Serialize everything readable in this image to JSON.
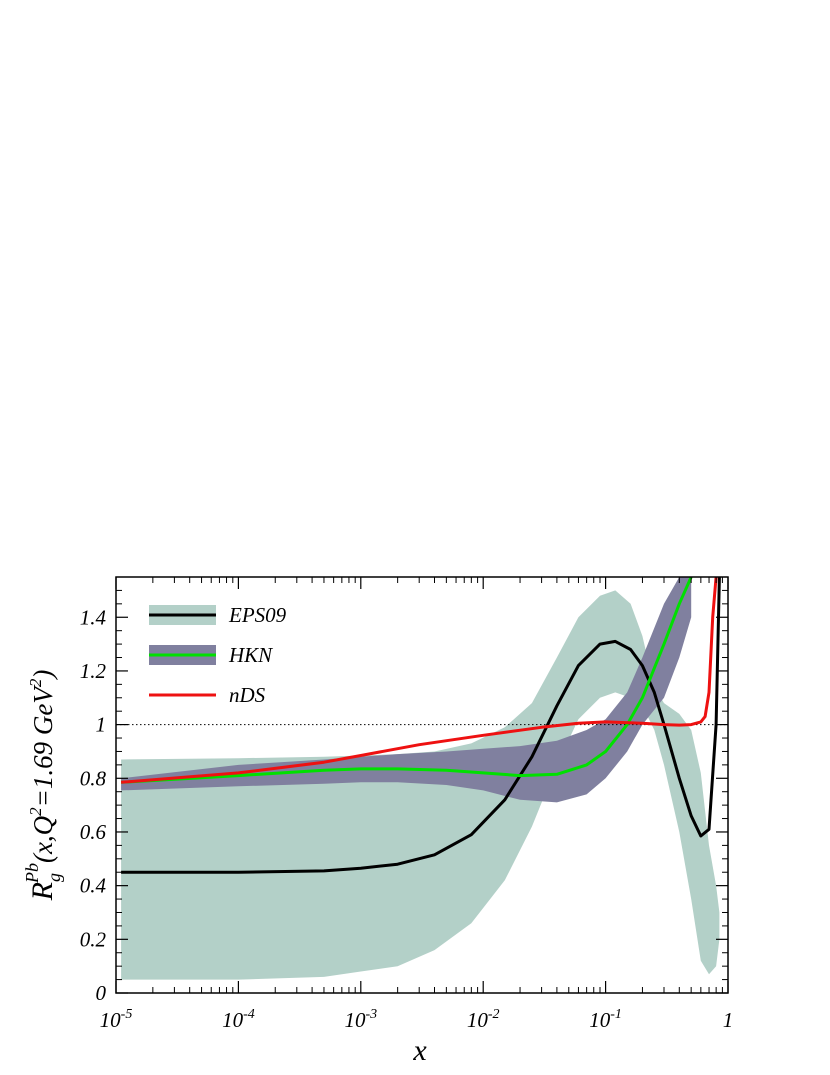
{
  "chart_data": {
    "type": "line",
    "title": "",
    "xlabel": "x",
    "ylabel": {
      "main": "R",
      "sub": "g",
      "sup": "Pb",
      "rest": "(x,Q",
      "q2sup": "2",
      "mid": "=1.69 GeV",
      "gevsup": "2",
      "close": ")"
    },
    "xscale": "log",
    "xlim": [
      1e-05,
      1.0
    ],
    "ylim": [
      0,
      1.55
    ],
    "xticks": [
      {
        "value": 1e-05,
        "base": "10",
        "exp": "-5"
      },
      {
        "value": 0.0001,
        "base": "10",
        "exp": "-4"
      },
      {
        "value": 0.001,
        "base": "10",
        "exp": "-3"
      },
      {
        "value": 0.01,
        "base": "10",
        "exp": "-2"
      },
      {
        "value": 0.1,
        "base": "10",
        "exp": "-1"
      },
      {
        "value": 1,
        "base": "1",
        "exp": ""
      }
    ],
    "yticks": [
      {
        "value": 0,
        "label": "0"
      },
      {
        "value": 0.2,
        "label": "0.2"
      },
      {
        "value": 0.4,
        "label": "0.4"
      },
      {
        "value": 0.6,
        "label": "0.6"
      },
      {
        "value": 0.8,
        "label": "0.8"
      },
      {
        "value": 1.0,
        "label": "1"
      },
      {
        "value": 1.2,
        "label": "1.2"
      },
      {
        "value": 1.4,
        "label": "1.4"
      }
    ],
    "reference_line": {
      "y": 1.0,
      "style": "dotted"
    },
    "legend_position": "top-left",
    "series": [
      {
        "name": "EPS09",
        "color": "#000000",
        "band_color": "#b3d0c8",
        "x": [
          1.1e-05,
          0.0001,
          0.0005,
          0.001,
          0.002,
          0.004,
          0.008,
          0.015,
          0.025,
          0.04,
          0.06,
          0.09,
          0.12,
          0.16,
          0.2,
          0.25,
          0.3,
          0.4,
          0.5,
          0.6,
          0.7,
          0.8,
          0.85
        ],
        "y": [
          0.45,
          0.45,
          0.455,
          0.465,
          0.48,
          0.515,
          0.59,
          0.72,
          0.88,
          1.07,
          1.22,
          1.3,
          1.31,
          1.28,
          1.22,
          1.12,
          1.0,
          0.8,
          0.66,
          0.585,
          0.61,
          1.0,
          1.55
        ],
        "band_upper": [
          0.87,
          0.875,
          0.88,
          0.885,
          0.89,
          0.9,
          0.93,
          0.99,
          1.08,
          1.25,
          1.4,
          1.48,
          1.5,
          1.45,
          1.33,
          1.14,
          1.08,
          1.04,
          0.98,
          0.82,
          0.55,
          0.4,
          0.3
        ],
        "band_lower": [
          0.05,
          0.05,
          0.06,
          0.08,
          0.1,
          0.16,
          0.26,
          0.42,
          0.62,
          0.85,
          1.02,
          1.1,
          1.12,
          1.1,
          1.07,
          0.98,
          0.85,
          0.6,
          0.35,
          0.12,
          0.07,
          0.1,
          0.2
        ]
      },
      {
        "name": "HKN",
        "color": "#00e000",
        "band_color": "#80809f",
        "x": [
          1.1e-05,
          0.0001,
          0.0005,
          0.001,
          0.002,
          0.005,
          0.01,
          0.02,
          0.04,
          0.07,
          0.1,
          0.15,
          0.2,
          0.3,
          0.4,
          0.5
        ],
        "y": [
          0.785,
          0.81,
          0.83,
          0.835,
          0.835,
          0.83,
          0.82,
          0.81,
          0.815,
          0.85,
          0.9,
          1.0,
          1.1,
          1.3,
          1.45,
          1.55
        ],
        "band_upper": [
          0.8,
          0.85,
          0.87,
          0.88,
          0.89,
          0.9,
          0.91,
          0.92,
          0.94,
          0.98,
          1.02,
          1.12,
          1.25,
          1.45,
          1.55,
          1.55
        ],
        "band_lower": [
          0.755,
          0.77,
          0.78,
          0.785,
          0.785,
          0.775,
          0.755,
          0.72,
          0.71,
          0.74,
          0.8,
          0.9,
          1.0,
          1.1,
          1.25,
          1.4
        ]
      },
      {
        "name": "nDS",
        "color": "#ee1111",
        "x": [
          1.1e-05,
          0.0001,
          0.0005,
          0.001,
          0.003,
          0.01,
          0.03,
          0.06,
          0.1,
          0.2,
          0.3,
          0.4,
          0.5,
          0.6,
          0.65,
          0.7,
          0.75,
          0.8
        ],
        "y": [
          0.785,
          0.82,
          0.86,
          0.885,
          0.925,
          0.96,
          0.99,
          1.005,
          1.01,
          1.005,
          1.0,
          0.998,
          1.0,
          1.01,
          1.03,
          1.12,
          1.4,
          1.55
        ]
      }
    ]
  }
}
